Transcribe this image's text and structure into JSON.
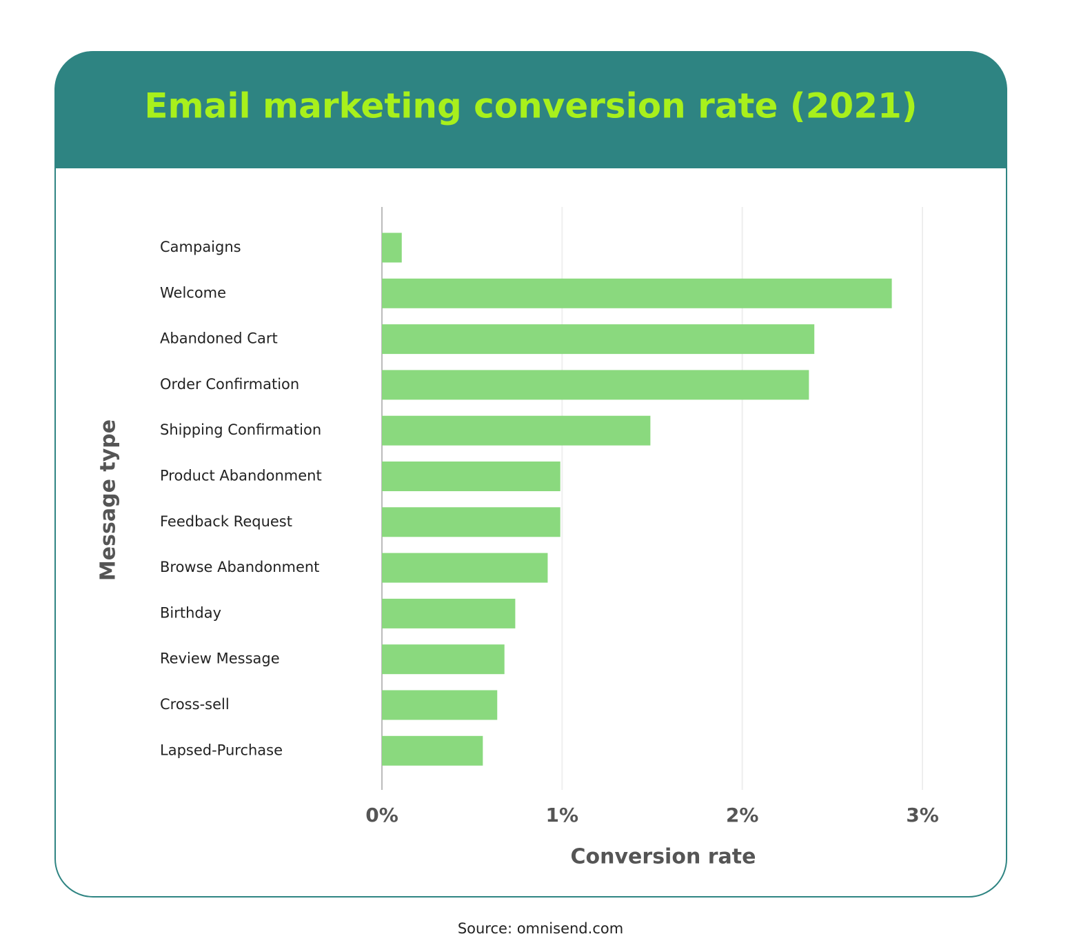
{
  "chart_data": {
    "type": "bar",
    "orientation": "horizontal",
    "title": "Email marketing conversion rate (2021)",
    "x_label": "Conversion rate",
    "y_label": "Message type",
    "source": "Source: omnisend.com",
    "categories": [
      "Campaigns",
      "Welcome",
      "Abandoned Cart",
      "Order Confirmation",
      "Shipping Confirmation",
      "Product Abandonment",
      "Feedback Request",
      "Browse Abandonment",
      "Birthday",
      "Review Message",
      "Cross-sell",
      "Lapsed-Purchase"
    ],
    "values": [
      0.11,
      2.83,
      2.4,
      2.37,
      1.49,
      0.99,
      0.99,
      0.92,
      0.74,
      0.68,
      0.64,
      0.56
    ],
    "color": "#8ad97e",
    "xlim": [
      0,
      3
    ],
    "xticks": [
      {
        "value": 0,
        "label": "0%"
      },
      {
        "value": 1,
        "label": "1%"
      },
      {
        "value": 2,
        "label": "2%"
      },
      {
        "value": 3,
        "label": "3%"
      }
    ],
    "grid": true
  }
}
